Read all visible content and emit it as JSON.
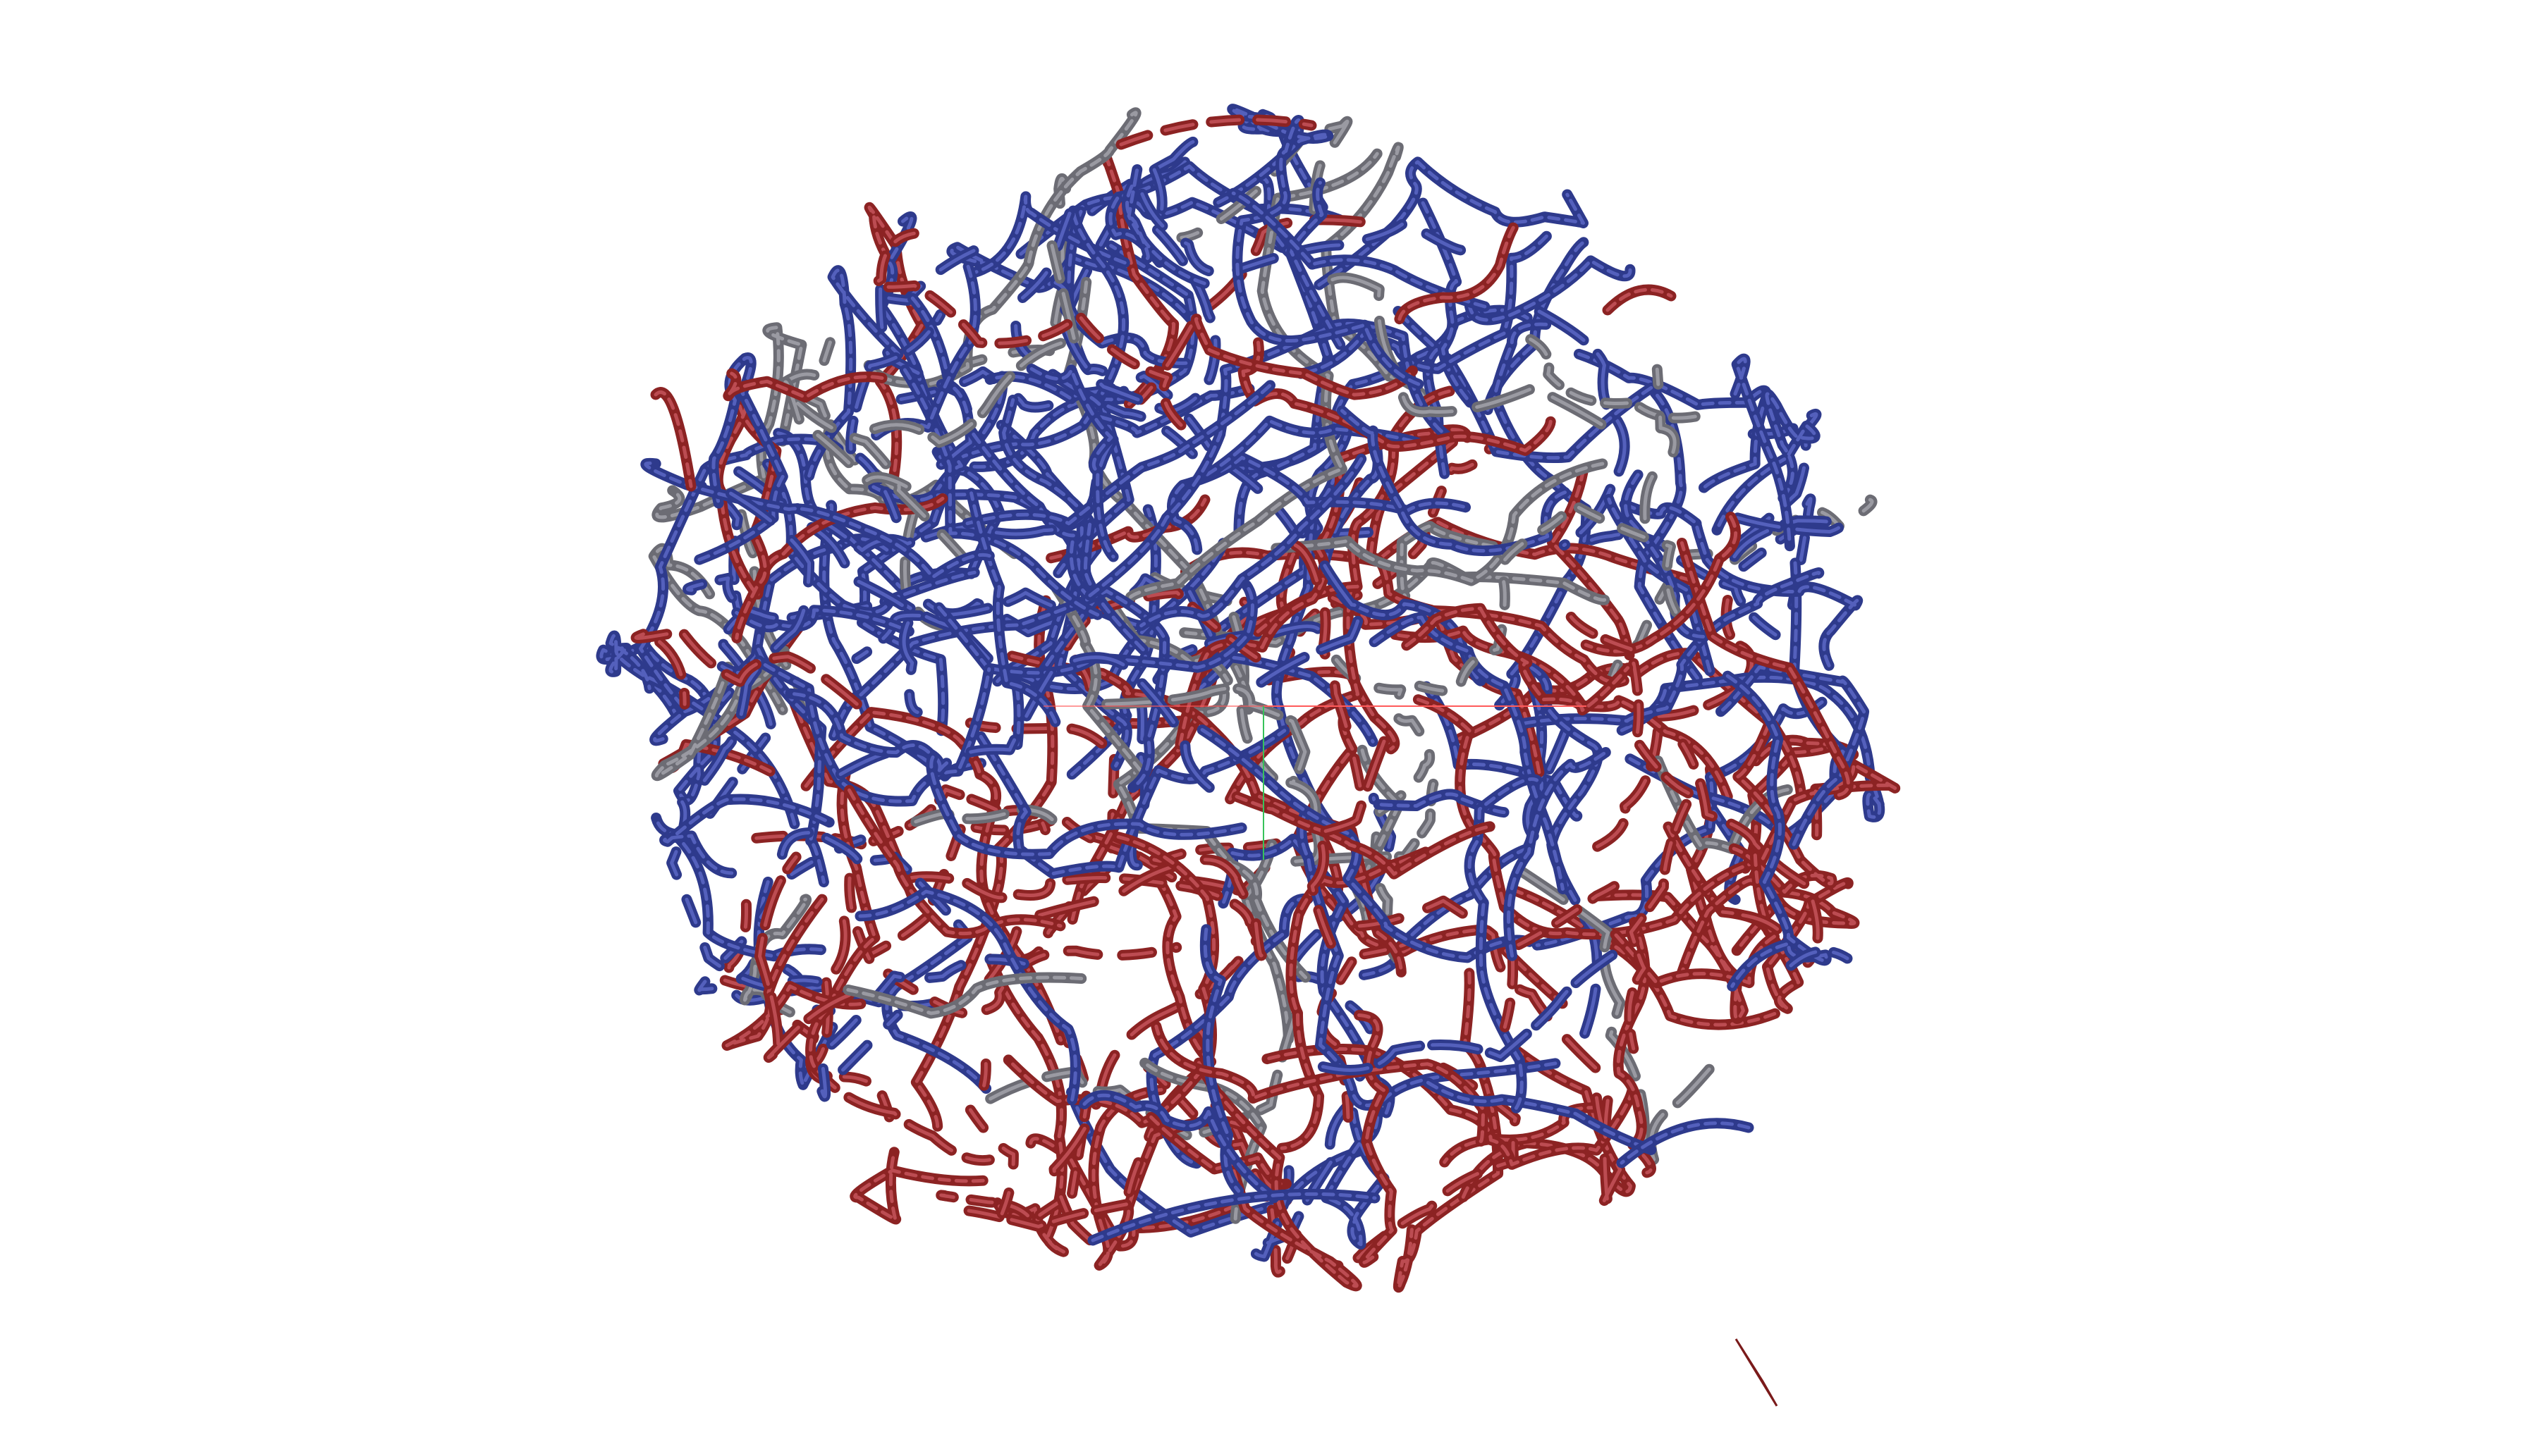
{
  "scene": {
    "kind": "molecular-visualization",
    "representation": "tube",
    "background_color": "#ffffff",
    "strand_colors": {
      "blue": "#2e3a8c",
      "blue_highlight": "#5a67c4",
      "red": "#8c2323",
      "red_highlight": "#c4545a",
      "gray": "#6c6c74",
      "gray_highlight": "#a2a2aa"
    },
    "axes": {
      "x_color": "#ff5a5a",
      "y_color": "#36c25a",
      "visible": true
    },
    "strand_mix": {
      "blue": 0.46,
      "red": 0.42,
      "gray": 0.12
    },
    "pointer_visible": true
  }
}
